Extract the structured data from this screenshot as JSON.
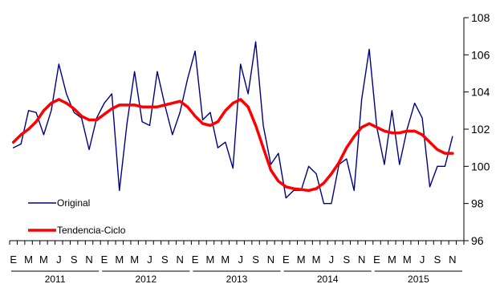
{
  "chart_data": {
    "type": "line",
    "y_axis_position": "right",
    "ylim": [
      96,
      108
    ],
    "yticks": [
      96,
      98,
      100,
      102,
      104,
      106,
      108
    ],
    "grid": false,
    "legend_position": "bottom-left",
    "month_tick_labels": [
      "E",
      "M",
      "M",
      "J",
      "S",
      "N"
    ],
    "month_tick_indices": [
      0,
      2,
      4,
      6,
      8,
      10
    ],
    "years": [
      "2011",
      "2012",
      "2013",
      "2014",
      "2015"
    ],
    "series": [
      {
        "name": "Original",
        "color": "#000080",
        "values": [
          101.0,
          101.2,
          103.0,
          102.9,
          101.7,
          103.0,
          105.5,
          103.9,
          102.9,
          102.6,
          100.9,
          102.6,
          103.4,
          103.9,
          98.7,
          102.3,
          105.1,
          102.4,
          102.2,
          105.1,
          103.3,
          101.7,
          102.9,
          104.7,
          106.2,
          102.5,
          102.9,
          101.0,
          101.3,
          99.9,
          105.5,
          103.9,
          106.7,
          102.2,
          100.1,
          100.7,
          98.3,
          98.7,
          98.7,
          100.0,
          99.6,
          98.0,
          98.0,
          100.1,
          100.4,
          98.7,
          103.6,
          106.3,
          102.1,
          100.1,
          103.0,
          100.1,
          102.0,
          103.4,
          102.6,
          98.9,
          100.0,
          100.0,
          101.6
        ]
      },
      {
        "name": "Tendencia-Ciclo",
        "color": "#ff0000",
        "values": [
          101.3,
          101.7,
          102.0,
          102.4,
          103.0,
          103.4,
          103.6,
          103.4,
          103.1,
          102.7,
          102.5,
          102.5,
          102.8,
          103.1,
          103.3,
          103.3,
          103.3,
          103.2,
          103.2,
          103.2,
          103.3,
          103.4,
          103.5,
          103.2,
          102.7,
          102.3,
          102.2,
          102.4,
          103.0,
          103.4,
          103.6,
          103.2,
          102.2,
          101.0,
          99.8,
          99.2,
          98.9,
          98.8,
          98.75,
          98.7,
          98.8,
          99.1,
          99.6,
          100.2,
          101.0,
          101.6,
          102.1,
          102.3,
          102.1,
          101.9,
          101.8,
          101.8,
          101.9,
          101.9,
          101.7,
          101.3,
          100.9,
          100.7,
          100.7
        ]
      }
    ]
  }
}
